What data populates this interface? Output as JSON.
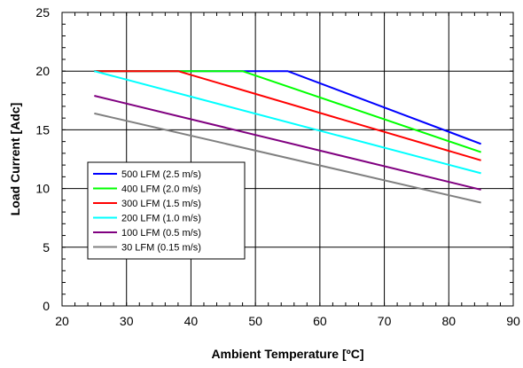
{
  "chart_data": {
    "type": "line",
    "xlabel": "Ambient Temperature [ºC]",
    "ylabel": "Load Current  [Adc]",
    "xlim": [
      20,
      90
    ],
    "ylim": [
      0,
      25
    ],
    "x_ticks": [
      20,
      30,
      40,
      50,
      60,
      70,
      80,
      90
    ],
    "y_ticks": [
      0,
      5,
      10,
      15,
      20,
      25
    ],
    "x_tick_labels": [
      "20",
      "30",
      "40",
      "50",
      "60",
      "70",
      "80",
      "90"
    ],
    "y_tick_labels": [
      "0",
      "5",
      "10",
      "15",
      "20",
      "25"
    ],
    "grid": true,
    "legend_position": "lower-left",
    "series": [
      {
        "name": "500 LFM (2.5 m/s)",
        "color": "#0000ff",
        "x": [
          25,
          55,
          85
        ],
        "y": [
          20,
          20,
          13.8
        ]
      },
      {
        "name": "400 LFM (2.0 m/s)",
        "color": "#00ff00",
        "x": [
          25,
          48,
          85
        ],
        "y": [
          20,
          20,
          13.1
        ]
      },
      {
        "name": "300 LFM (1.5 m/s)",
        "color": "#ff0000",
        "x": [
          25,
          38,
          85
        ],
        "y": [
          20,
          20,
          12.4
        ]
      },
      {
        "name": "200 LFM (1.0 m/s)",
        "color": "#00ffff",
        "x": [
          25,
          85
        ],
        "y": [
          20,
          11.3
        ]
      },
      {
        "name": "100 LFM (0.5 m/s)",
        "color": "#800080",
        "x": [
          25,
          85
        ],
        "y": [
          17.9,
          9.9
        ]
      },
      {
        "name": "30 LFM (0.15 m/s)",
        "color": "#808080",
        "x": [
          25,
          85
        ],
        "y": [
          16.4,
          8.8
        ]
      }
    ]
  }
}
